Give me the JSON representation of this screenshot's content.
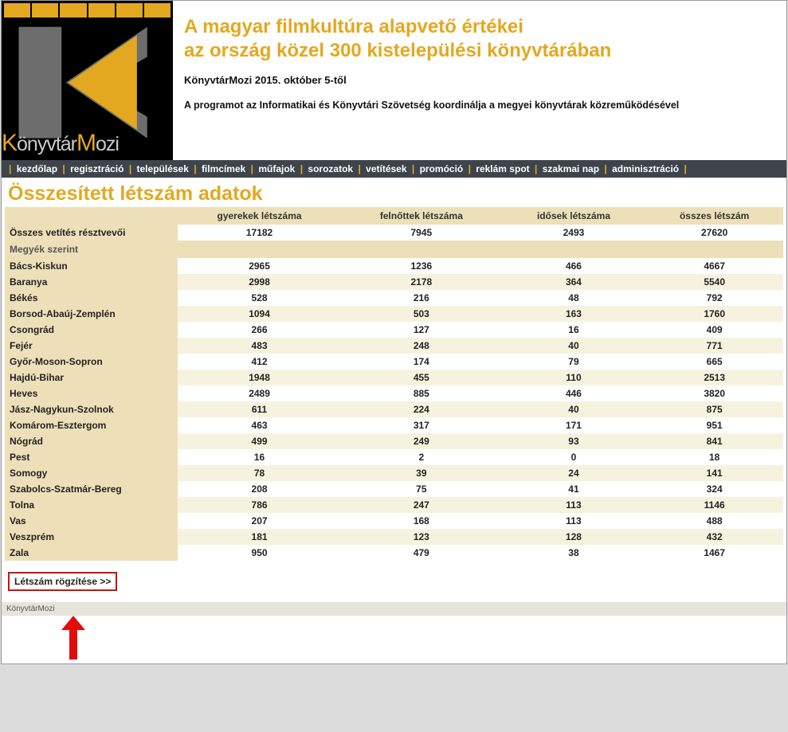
{
  "brand": {
    "k": "K",
    "rest1": "önyvtár",
    "m": "M",
    "rest2": "ozi"
  },
  "header": {
    "title_line1": "A magyar filmkultúra alapvető értékei",
    "title_line2": "az ország közel 300 kistelepülési könyvtárában",
    "subtitle": "KönyvtárMozi 2015. október 5-től",
    "desc": "A programot az Informatikai és Könyvtári Szövetség koordinálja a megyei könyvtárak közreműködésével"
  },
  "nav": [
    "kezdőlap",
    "regisztráció",
    "települések",
    "filmcímek",
    "műfajok",
    "sorozatok",
    "vetítések",
    "promóció",
    "reklám spot",
    "szakmai nap",
    "adminisztráció"
  ],
  "page_title": "Összesített létszám adatok",
  "table": {
    "headers": [
      "gyerekek létszáma",
      "felnőttek létszáma",
      "idősek létszáma",
      "összes létszám"
    ],
    "total_label": "Összes vetítés résztvevői",
    "total_values": [
      "17182",
      "7945",
      "2493",
      "27620"
    ],
    "section_label": "Megyék szerint",
    "rows": [
      {
        "label": "Bács-Kiskun",
        "v": [
          "2965",
          "1236",
          "466",
          "4667"
        ]
      },
      {
        "label": "Baranya",
        "v": [
          "2998",
          "2178",
          "364",
          "5540"
        ]
      },
      {
        "label": "Békés",
        "v": [
          "528",
          "216",
          "48",
          "792"
        ]
      },
      {
        "label": "Borsod-Abaúj-Zemplén",
        "v": [
          "1094",
          "503",
          "163",
          "1760"
        ]
      },
      {
        "label": "Csongrád",
        "v": [
          "266",
          "127",
          "16",
          "409"
        ]
      },
      {
        "label": "Fejér",
        "v": [
          "483",
          "248",
          "40",
          "771"
        ]
      },
      {
        "label": "Győr-Moson-Sopron",
        "v": [
          "412",
          "174",
          "79",
          "665"
        ]
      },
      {
        "label": "Hajdú-Bihar",
        "v": [
          "1948",
          "455",
          "110",
          "2513"
        ]
      },
      {
        "label": "Heves",
        "v": [
          "2489",
          "885",
          "446",
          "3820"
        ]
      },
      {
        "label": "Jász-Nagykun-Szolnok",
        "v": [
          "611",
          "224",
          "40",
          "875"
        ]
      },
      {
        "label": "Komárom-Esztergom",
        "v": [
          "463",
          "317",
          "171",
          "951"
        ]
      },
      {
        "label": "Nógrád",
        "v": [
          "499",
          "249",
          "93",
          "841"
        ]
      },
      {
        "label": "Pest",
        "v": [
          "16",
          "2",
          "0",
          "18"
        ]
      },
      {
        "label": "Somogy",
        "v": [
          "78",
          "39",
          "24",
          "141"
        ]
      },
      {
        "label": "Szabolcs-Szatmár-Bereg",
        "v": [
          "208",
          "75",
          "41",
          "324"
        ]
      },
      {
        "label": "Tolna",
        "v": [
          "786",
          "247",
          "113",
          "1146"
        ]
      },
      {
        "label": "Vas",
        "v": [
          "207",
          "168",
          "113",
          "488"
        ]
      },
      {
        "label": "Veszprém",
        "v": [
          "181",
          "123",
          "128",
          "432"
        ]
      },
      {
        "label": "Zala",
        "v": [
          "950",
          "479",
          "38",
          "1467"
        ]
      }
    ]
  },
  "button_label": "Létszám rögzítése >>",
  "footer": "KönyvtárMozi",
  "colors": {
    "accent": "#e3a820",
    "navbg": "#3e444c",
    "cell": "#ede0b8",
    "alt": "#f7f2df",
    "red": "#c4170c"
  }
}
